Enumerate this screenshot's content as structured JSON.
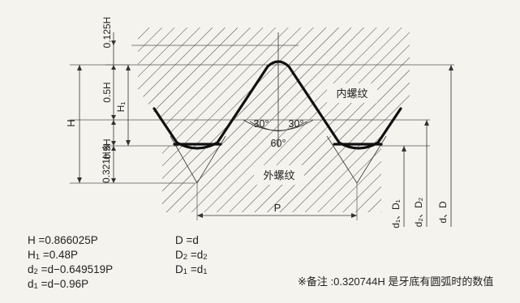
{
  "diagram": {
    "labels": {
      "h_total": "H",
      "h_top": "0.125H",
      "h_upper_half": "0.5H",
      "h_lower_half": "0.5H",
      "h_root": "0.321H※",
      "h1": "H₁",
      "pitch": "P",
      "angle_left": "30°",
      "angle_right": "30°",
      "angle_total": "60°",
      "internal_thread": "内螺纹",
      "external_thread": "外螺纹",
      "diam_minor": "d₁、D₁",
      "diam_pitch": "d₂、D₂",
      "diam_major": "d、D"
    }
  },
  "formulas_left": [
    {
      "sym": "H",
      "sub": "",
      "eq": "=0.866025P"
    },
    {
      "sym": "H",
      "sub": "1",
      "eq": "=0.48P"
    },
    {
      "sym": "d",
      "sub": "2",
      "eq": "=d−0.649519P"
    },
    {
      "sym": "d",
      "sub": "1",
      "eq": "=d−0.96P"
    }
  ],
  "formulas_right": [
    {
      "sym": "D",
      "sub": "",
      "eq": "=d"
    },
    {
      "sym": "D",
      "sub": "2",
      "eq": "=d",
      "eq_sub": "2"
    },
    {
      "sym": "D",
      "sub": "1",
      "eq": "=d",
      "eq_sub": "1"
    }
  ],
  "note": "※备注 :0.320744H 是牙底有圆弧时的数值",
  "colors": {
    "background": "#f5f3ee",
    "line": "#111111",
    "hatch": "#444444"
  }
}
